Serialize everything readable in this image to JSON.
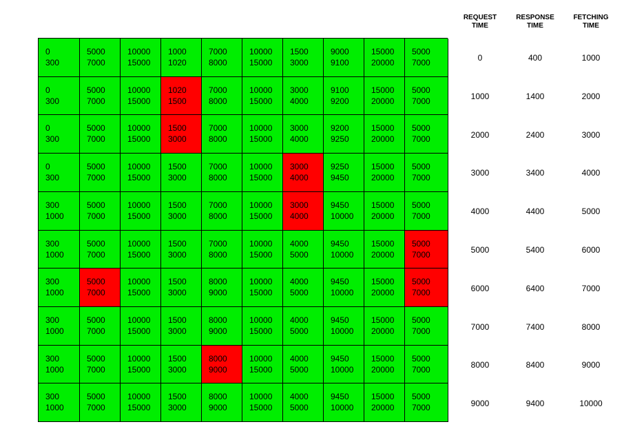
{
  "headers": [
    {
      "l1": "REQUEST",
      "l2": "TIME"
    },
    {
      "l1": "RESPONSE",
      "l2": "TIME"
    },
    {
      "l1": "FETCHING",
      "l2": "TIME"
    }
  ],
  "colors": {
    "normal": "#00ee00",
    "highlight": "#ff0000"
  },
  "rows": [
    {
      "cells": [
        {
          "a": "0",
          "b": "300",
          "hl": false
        },
        {
          "a": "5000",
          "b": "7000",
          "hl": false
        },
        {
          "a": "10000",
          "b": "15000",
          "hl": false
        },
        {
          "a": "1000",
          "b": "1020",
          "hl": false
        },
        {
          "a": "7000",
          "b": "8000",
          "hl": false
        },
        {
          "a": "10000",
          "b": "15000",
          "hl": false
        },
        {
          "a": "1500",
          "b": "3000",
          "hl": false
        },
        {
          "a": "9000",
          "b": "9100",
          "hl": false
        },
        {
          "a": "15000",
          "b": "20000",
          "hl": false
        },
        {
          "a": "5000",
          "b": "7000",
          "hl": false
        }
      ],
      "request": "0",
      "response": "400",
      "fetching": "1000"
    },
    {
      "cells": [
        {
          "a": "0",
          "b": "300",
          "hl": false
        },
        {
          "a": "5000",
          "b": "7000",
          "hl": false
        },
        {
          "a": "10000",
          "b": "15000",
          "hl": false
        },
        {
          "a": "1020",
          "b": "1500",
          "hl": true
        },
        {
          "a": "7000",
          "b": "8000",
          "hl": false
        },
        {
          "a": "10000",
          "b": "15000",
          "hl": false
        },
        {
          "a": "3000",
          "b": "4000",
          "hl": false
        },
        {
          "a": "9100",
          "b": "9200",
          "hl": false
        },
        {
          "a": "15000",
          "b": "20000",
          "hl": false
        },
        {
          "a": "5000",
          "b": "7000",
          "hl": false
        }
      ],
      "request": "1000",
      "response": "1400",
      "fetching": "2000"
    },
    {
      "cells": [
        {
          "a": "0",
          "b": "300",
          "hl": false
        },
        {
          "a": "5000",
          "b": "7000",
          "hl": false
        },
        {
          "a": "10000",
          "b": "15000",
          "hl": false
        },
        {
          "a": "1500",
          "b": "3000",
          "hl": true
        },
        {
          "a": "7000",
          "b": "8000",
          "hl": false
        },
        {
          "a": "10000",
          "b": "15000",
          "hl": false
        },
        {
          "a": "3000",
          "b": "4000",
          "hl": false
        },
        {
          "a": "9200",
          "b": "9250",
          "hl": false
        },
        {
          "a": "15000",
          "b": "20000",
          "hl": false
        },
        {
          "a": "5000",
          "b": "7000",
          "hl": false
        }
      ],
      "request": "2000",
      "response": "2400",
      "fetching": "3000"
    },
    {
      "cells": [
        {
          "a": "0",
          "b": "300",
          "hl": false
        },
        {
          "a": "5000",
          "b": "7000",
          "hl": false
        },
        {
          "a": "10000",
          "b": "15000",
          "hl": false
        },
        {
          "a": "1500",
          "b": "3000",
          "hl": false
        },
        {
          "a": "7000",
          "b": "8000",
          "hl": false
        },
        {
          "a": "10000",
          "b": "15000",
          "hl": false
        },
        {
          "a": "3000",
          "b": "4000",
          "hl": true
        },
        {
          "a": "9250",
          "b": "9450",
          "hl": false
        },
        {
          "a": "15000",
          "b": "20000",
          "hl": false
        },
        {
          "a": "5000",
          "b": "7000",
          "hl": false
        }
      ],
      "request": "3000",
      "response": "3400",
      "fetching": "4000"
    },
    {
      "cells": [
        {
          "a": "300",
          "b": "1000",
          "hl": false
        },
        {
          "a": "5000",
          "b": "7000",
          "hl": false
        },
        {
          "a": "10000",
          "b": "15000",
          "hl": false
        },
        {
          "a": "1500",
          "b": "3000",
          "hl": false
        },
        {
          "a": "7000",
          "b": "8000",
          "hl": false
        },
        {
          "a": "10000",
          "b": "15000",
          "hl": false
        },
        {
          "a": "3000",
          "b": "4000",
          "hl": true
        },
        {
          "a": "9450",
          "b": "10000",
          "hl": false
        },
        {
          "a": "15000",
          "b": "20000",
          "hl": false
        },
        {
          "a": "5000",
          "b": "7000",
          "hl": false
        }
      ],
      "request": "4000",
      "response": "4400",
      "fetching": "5000"
    },
    {
      "cells": [
        {
          "a": "300",
          "b": "1000",
          "hl": false
        },
        {
          "a": "5000",
          "b": "7000",
          "hl": false
        },
        {
          "a": "10000",
          "b": "15000",
          "hl": false
        },
        {
          "a": "1500",
          "b": "3000",
          "hl": false
        },
        {
          "a": "7000",
          "b": "8000",
          "hl": false
        },
        {
          "a": "10000",
          "b": "15000",
          "hl": false
        },
        {
          "a": "4000",
          "b": "5000",
          "hl": false
        },
        {
          "a": "9450",
          "b": "10000",
          "hl": false
        },
        {
          "a": "15000",
          "b": "20000",
          "hl": false
        },
        {
          "a": "5000",
          "b": "7000",
          "hl": true
        }
      ],
      "request": "5000",
      "response": "5400",
      "fetching": "6000"
    },
    {
      "cells": [
        {
          "a": "300",
          "b": "1000",
          "hl": false
        },
        {
          "a": "5000",
          "b": "7000",
          "hl": true
        },
        {
          "a": "10000",
          "b": "15000",
          "hl": false
        },
        {
          "a": "1500",
          "b": "3000",
          "hl": false
        },
        {
          "a": "8000",
          "b": "9000",
          "hl": false
        },
        {
          "a": "10000",
          "b": "15000",
          "hl": false
        },
        {
          "a": "4000",
          "b": "5000",
          "hl": false
        },
        {
          "a": "9450",
          "b": "10000",
          "hl": false
        },
        {
          "a": "15000",
          "b": "20000",
          "hl": false
        },
        {
          "a": "5000",
          "b": "7000",
          "hl": true
        }
      ],
      "request": "6000",
      "response": "6400",
      "fetching": "7000"
    },
    {
      "cells": [
        {
          "a": "300",
          "b": "1000",
          "hl": false
        },
        {
          "a": "5000",
          "b": "7000",
          "hl": false
        },
        {
          "a": "10000",
          "b": "15000",
          "hl": false
        },
        {
          "a": "1500",
          "b": "3000",
          "hl": false
        },
        {
          "a": "8000",
          "b": "9000",
          "hl": false
        },
        {
          "a": "10000",
          "b": "15000",
          "hl": false
        },
        {
          "a": "4000",
          "b": "5000",
          "hl": false
        },
        {
          "a": "9450",
          "b": "10000",
          "hl": false
        },
        {
          "a": "15000",
          "b": "20000",
          "hl": false
        },
        {
          "a": "5000",
          "b": "7000",
          "hl": false
        }
      ],
      "request": "7000",
      "response": "7400",
      "fetching": "8000"
    },
    {
      "cells": [
        {
          "a": "300",
          "b": "1000",
          "hl": false
        },
        {
          "a": "5000",
          "b": "7000",
          "hl": false
        },
        {
          "a": "10000",
          "b": "15000",
          "hl": false
        },
        {
          "a": "1500",
          "b": "3000",
          "hl": false
        },
        {
          "a": "8000",
          "b": "9000",
          "hl": true
        },
        {
          "a": "10000",
          "b": "15000",
          "hl": false
        },
        {
          "a": "4000",
          "b": "5000",
          "hl": false
        },
        {
          "a": "9450",
          "b": "10000",
          "hl": false
        },
        {
          "a": "15000",
          "b": "20000",
          "hl": false
        },
        {
          "a": "5000",
          "b": "7000",
          "hl": false
        }
      ],
      "request": "8000",
      "response": "8400",
      "fetching": "9000"
    },
    {
      "cells": [
        {
          "a": "300",
          "b": "1000",
          "hl": false
        },
        {
          "a": "5000",
          "b": "7000",
          "hl": false
        },
        {
          "a": "10000",
          "b": "15000",
          "hl": false
        },
        {
          "a": "1500",
          "b": "3000",
          "hl": false
        },
        {
          "a": "8000",
          "b": "9000",
          "hl": false
        },
        {
          "a": "10000",
          "b": "15000",
          "hl": false
        },
        {
          "a": "4000",
          "b": "5000",
          "hl": false
        },
        {
          "a": "9450",
          "b": "10000",
          "hl": false
        },
        {
          "a": "15000",
          "b": "20000",
          "hl": false
        },
        {
          "a": "5000",
          "b": "7000",
          "hl": false
        }
      ],
      "request": "9000",
      "response": "9400",
      "fetching": "10000"
    }
  ]
}
